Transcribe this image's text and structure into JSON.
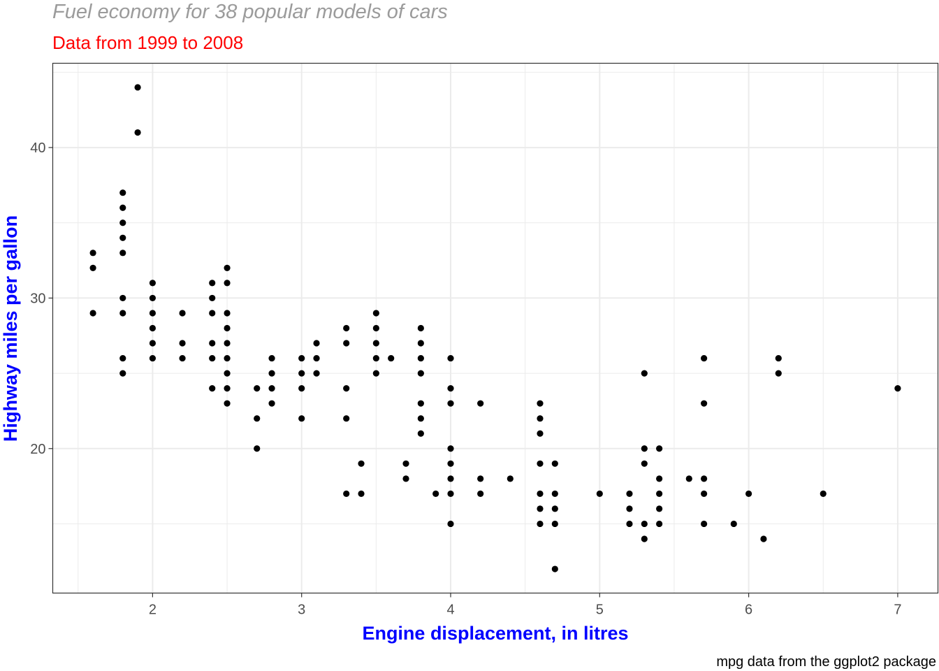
{
  "chart_data": {
    "type": "scatter",
    "title": "Fuel economy for 38 popular models of cars",
    "subtitle": "Data from 1999 to 2008",
    "caption": "mpg data from the ggplot2 package",
    "xlabel": "Engine displacement, in litres",
    "ylabel": "Highway miles per gallon",
    "xlim": [
      1.33,
      7.27
    ],
    "ylim": [
      10.4,
      45.6
    ],
    "x_ticks": [
      2,
      3,
      4,
      5,
      6,
      7
    ],
    "x_minor_ticks": [
      1.5,
      2.5,
      3.5,
      4.5,
      5.5,
      6.5
    ],
    "y_ticks": [
      20,
      30,
      40
    ],
    "y_minor_ticks": [
      15,
      25,
      35,
      45
    ],
    "x_tick_labels": [
      "2",
      "3",
      "4",
      "5",
      "6",
      "7"
    ],
    "y_tick_labels": [
      "20",
      "30",
      "40"
    ],
    "grid": true,
    "theme": "bw",
    "colors": {
      "points": "#000000",
      "grid": "#ebebeb",
      "panel_border": "#333333"
    },
    "points": [
      [
        1.6,
        33
      ],
      [
        1.6,
        32
      ],
      [
        1.6,
        29
      ],
      [
        1.8,
        37
      ],
      [
        1.8,
        36
      ],
      [
        1.8,
        35
      ],
      [
        1.8,
        34
      ],
      [
        1.8,
        33
      ],
      [
        1.8,
        30
      ],
      [
        1.8,
        29
      ],
      [
        1.8,
        26
      ],
      [
        1.8,
        25
      ],
      [
        1.9,
        44
      ],
      [
        1.9,
        41
      ],
      [
        2.0,
        31
      ],
      [
        2.0,
        30
      ],
      [
        2.0,
        29
      ],
      [
        2.0,
        28
      ],
      [
        2.0,
        27
      ],
      [
        2.0,
        26
      ],
      [
        2.2,
        29
      ],
      [
        2.2,
        27
      ],
      [
        2.2,
        26
      ],
      [
        2.4,
        31
      ],
      [
        2.4,
        30
      ],
      [
        2.4,
        29
      ],
      [
        2.4,
        27
      ],
      [
        2.4,
        26
      ],
      [
        2.4,
        24
      ],
      [
        2.5,
        32
      ],
      [
        2.5,
        31
      ],
      [
        2.5,
        29
      ],
      [
        2.5,
        28
      ],
      [
        2.5,
        27
      ],
      [
        2.5,
        26
      ],
      [
        2.5,
        25
      ],
      [
        2.5,
        24
      ],
      [
        2.5,
        23
      ],
      [
        2.7,
        24
      ],
      [
        2.7,
        22
      ],
      [
        2.7,
        20
      ],
      [
        2.8,
        26
      ],
      [
        2.8,
        25
      ],
      [
        2.8,
        24
      ],
      [
        2.8,
        23
      ],
      [
        3.0,
        26
      ],
      [
        3.0,
        25
      ],
      [
        3.0,
        24
      ],
      [
        3.0,
        22
      ],
      [
        3.1,
        27
      ],
      [
        3.1,
        26
      ],
      [
        3.1,
        25
      ],
      [
        3.3,
        28
      ],
      [
        3.3,
        27
      ],
      [
        3.3,
        24
      ],
      [
        3.3,
        22
      ],
      [
        3.3,
        17
      ],
      [
        3.4,
        19
      ],
      [
        3.4,
        17
      ],
      [
        3.5,
        29
      ],
      [
        3.5,
        28
      ],
      [
        3.5,
        27
      ],
      [
        3.5,
        26
      ],
      [
        3.5,
        25
      ],
      [
        3.6,
        26
      ],
      [
        3.7,
        19
      ],
      [
        3.7,
        18
      ],
      [
        3.8,
        28
      ],
      [
        3.8,
        27
      ],
      [
        3.8,
        26
      ],
      [
        3.8,
        25
      ],
      [
        3.8,
        23
      ],
      [
        3.8,
        22
      ],
      [
        3.8,
        21
      ],
      [
        3.9,
        17
      ],
      [
        4.0,
        26
      ],
      [
        4.0,
        24
      ],
      [
        4.0,
        23
      ],
      [
        4.0,
        20
      ],
      [
        4.0,
        19
      ],
      [
        4.0,
        18
      ],
      [
        4.0,
        17
      ],
      [
        4.0,
        15
      ],
      [
        4.2,
        23
      ],
      [
        4.2,
        18
      ],
      [
        4.2,
        17
      ],
      [
        4.4,
        18
      ],
      [
        4.6,
        23
      ],
      [
        4.6,
        22
      ],
      [
        4.6,
        21
      ],
      [
        4.6,
        19
      ],
      [
        4.6,
        17
      ],
      [
        4.6,
        16
      ],
      [
        4.6,
        15
      ],
      [
        4.7,
        19
      ],
      [
        4.7,
        17
      ],
      [
        4.7,
        16
      ],
      [
        4.7,
        15
      ],
      [
        4.7,
        12
      ],
      [
        5.0,
        17
      ],
      [
        5.2,
        17
      ],
      [
        5.2,
        16
      ],
      [
        5.2,
        15
      ],
      [
        5.3,
        25
      ],
      [
        5.3,
        20
      ],
      [
        5.3,
        19
      ],
      [
        5.3,
        15
      ],
      [
        5.3,
        14
      ],
      [
        5.4,
        20
      ],
      [
        5.4,
        18
      ],
      [
        5.4,
        17
      ],
      [
        5.4,
        16
      ],
      [
        5.4,
        15
      ],
      [
        5.6,
        18
      ],
      [
        5.7,
        26
      ],
      [
        5.7,
        23
      ],
      [
        5.7,
        18
      ],
      [
        5.7,
        17
      ],
      [
        5.7,
        15
      ],
      [
        5.9,
        15
      ],
      [
        6.0,
        17
      ],
      [
        6.1,
        14
      ],
      [
        6.2,
        26
      ],
      [
        6.2,
        25
      ],
      [
        6.5,
        17
      ],
      [
        7.0,
        24
      ]
    ]
  }
}
